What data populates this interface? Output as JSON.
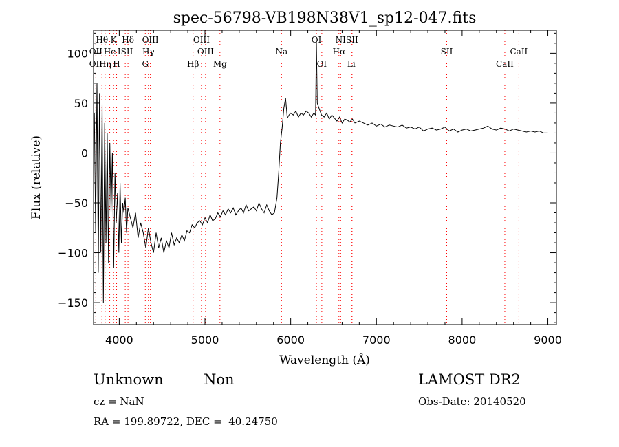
{
  "chart_data": {
    "type": "line",
    "title": "spec-56798-VB198N38V1_sp12-047.fits",
    "xlabel": "Wavelength (Å)",
    "ylabel": "Flux (relative)",
    "xlim": [
      3700,
      9100
    ],
    "ylim": [
      -172,
      123
    ],
    "x_ticks": [
      4000,
      5000,
      6000,
      7000,
      8000,
      9000
    ],
    "y_ticks": [
      -150,
      -100,
      -50,
      0,
      50,
      100
    ],
    "grid": false,
    "series": [
      {
        "line_color": "#000000",
        "x": [
          3710,
          3725,
          3740,
          3755,
          3770,
          3785,
          3800,
          3815,
          3830,
          3845,
          3860,
          3875,
          3890,
          3905,
          3920,
          3935,
          3950,
          3965,
          3980,
          3995,
          4010,
          4025,
          4040,
          4055,
          4070,
          4085,
          4100,
          4130,
          4160,
          4190,
          4220,
          4250,
          4280,
          4310,
          4340,
          4370,
          4400,
          4430,
          4460,
          4490,
          4520,
          4550,
          4580,
          4610,
          4640,
          4670,
          4700,
          4730,
          4760,
          4790,
          4820,
          4850,
          4880,
          4910,
          4940,
          4970,
          5000,
          5030,
          5060,
          5090,
          5120,
          5150,
          5180,
          5210,
          5240,
          5270,
          5300,
          5330,
          5360,
          5390,
          5420,
          5450,
          5480,
          5510,
          5540,
          5570,
          5600,
          5630,
          5660,
          5690,
          5720,
          5750,
          5780,
          5810,
          5840,
          5860,
          5880,
          5900,
          5920,
          5940,
          5960,
          5980,
          6000,
          6030,
          6060,
          6090,
          6120,
          6150,
          6180,
          6210,
          6240,
          6270,
          6290,
          6300,
          6310,
          6330,
          6360,
          6390,
          6420,
          6450,
          6480,
          6510,
          6540,
          6570,
          6600,
          6630,
          6660,
          6690,
          6720,
          6750,
          6800,
          6850,
          6900,
          6950,
          7000,
          7050,
          7100,
          7150,
          7200,
          7250,
          7300,
          7350,
          7400,
          7450,
          7500,
          7550,
          7600,
          7650,
          7700,
          7750,
          7800,
          7850,
          7900,
          7950,
          8000,
          8050,
          8100,
          8150,
          8200,
          8250,
          8300,
          8350,
          8400,
          8450,
          8500,
          8550,
          8600,
          8650,
          8700,
          8750,
          8800,
          8850,
          8900,
          8950,
          9000
        ],
        "y": [
          40,
          -80,
          70,
          -120,
          60,
          -100,
          50,
          -150,
          30,
          -90,
          20,
          -110,
          10,
          -60,
          0,
          -115,
          -20,
          -70,
          -40,
          -100,
          -30,
          -90,
          -50,
          -60,
          -45,
          -80,
          -55,
          -65,
          -75,
          -60,
          -85,
          -70,
          -80,
          -95,
          -75,
          -90,
          -100,
          -80,
          -95,
          -85,
          -100,
          -88,
          -95,
          -80,
          -92,
          -85,
          -90,
          -82,
          -88,
          -78,
          -80,
          -72,
          -75,
          -70,
          -68,
          -72,
          -65,
          -70,
          -62,
          -68,
          -66,
          -60,
          -64,
          -58,
          -62,
          -56,
          -60,
          -55,
          -62,
          -58,
          -55,
          -60,
          -52,
          -58,
          -56,
          -54,
          -58,
          -50,
          -56,
          -60,
          -52,
          -58,
          -62,
          -60,
          -45,
          -20,
          10,
          25,
          45,
          55,
          35,
          38,
          40,
          38,
          42,
          36,
          40,
          38,
          42,
          40,
          36,
          40,
          38,
          112,
          50,
          45,
          38,
          36,
          40,
          34,
          38,
          35,
          32,
          36,
          30,
          34,
          33,
          31,
          34,
          30,
          32,
          30,
          28,
          30,
          27,
          29,
          26,
          28,
          27,
          26,
          28,
          25,
          26,
          24,
          26,
          22,
          24,
          25,
          23,
          24,
          26,
          22,
          24,
          21,
          23,
          24,
          22,
          23,
          24,
          25,
          27,
          24,
          23,
          25,
          24,
          22,
          24,
          23,
          22,
          21,
          22,
          21,
          22,
          20,
          20
        ]
      }
    ],
    "lines": [
      {
        "label": "Hθ",
        "wavelength": 3798,
        "row": 1
      },
      {
        "label": "K",
        "wavelength": 3934,
        "row": 1
      },
      {
        "label": "Hδ",
        "wavelength": 4102,
        "row": 1
      },
      {
        "label": "OIII",
        "wavelength": 4363,
        "row": 1
      },
      {
        "label": "OIII",
        "wavelength": 4959,
        "row": 1
      },
      {
        "label": "OI",
        "wavelength": 6300,
        "row": 1
      },
      {
        "label": "NI",
        "wavelength": 6583,
        "row": 1
      },
      {
        "label": "SII",
        "wavelength": 6716,
        "row": 1
      },
      {
        "label": "OII",
        "wavelength": 3727,
        "row": 2
      },
      {
        "label": "He",
        "wavelength": 3889,
        "row": 2
      },
      {
        "label": "ISII",
        "wavelength": 4070,
        "row": 2
      },
      {
        "label": "Hγ",
        "wavelength": 4340,
        "row": 2
      },
      {
        "label": "OIII",
        "wavelength": 5007,
        "row": 2
      },
      {
        "label": "Na",
        "wavelength": 5893,
        "row": 2
      },
      {
        "label": "Hα",
        "wavelength": 6563,
        "row": 2
      },
      {
        "label": "SII",
        "wavelength": 7820,
        "row": 2
      },
      {
        "label": "CaII",
        "wavelength": 8662,
        "row": 2
      },
      {
        "label": "OII",
        "wavelength": 3727,
        "row": 3
      },
      {
        "label": "Hη",
        "wavelength": 3835,
        "row": 3
      },
      {
        "label": "H",
        "wavelength": 3969,
        "row": 3
      },
      {
        "label": "G",
        "wavelength": 4304,
        "row": 3
      },
      {
        "label": "Hβ",
        "wavelength": 4861,
        "row": 3
      },
      {
        "label": "Mg",
        "wavelength": 5175,
        "row": 3
      },
      {
        "label": "OI",
        "wavelength": 6363,
        "row": 3
      },
      {
        "label": "Li",
        "wavelength": 6707,
        "row": 3
      },
      {
        "label": "CaII",
        "wavelength": 8498,
        "row": 3
      }
    ],
    "line_marker_color": "#ff0000"
  },
  "info": {
    "class": "Unknown",
    "subclass": "Non",
    "cz": "cz = NaN",
    "coords": "RA = 199.89722, DEC =  40.24750",
    "survey": "LAMOST DR2",
    "obs_date": "Obs-Date: 20140520"
  }
}
